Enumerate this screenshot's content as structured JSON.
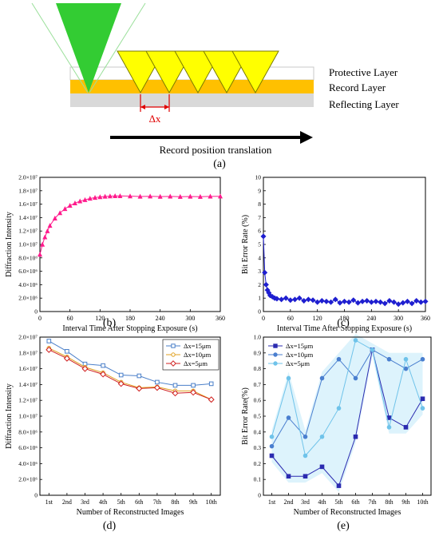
{
  "panel_a": {
    "layers": [
      "Protective Layer",
      "Record Layer",
      "Reflecting Layer"
    ],
    "delta_label": "Δx",
    "arrow_label": "Record position translation",
    "panel_label": "(a)",
    "colors": {
      "beam": "#33cc33",
      "spots": "#ffff00",
      "record": "#ffc000",
      "reflect": "#d9d9d9",
      "marker": "#e00000"
    }
  },
  "chart_data": [
    {
      "id": "b",
      "type": "line",
      "panel_label": "(b)",
      "xlabel": "Interval Time After Stopping Exposure (s)",
      "ylabel": "Diffraction Intensity",
      "xlim": [
        0,
        360
      ],
      "xticks": [
        0,
        60,
        120,
        180,
        240,
        300,
        360
      ],
      "ylim": [
        0,
        20000000
      ],
      "yticks": [
        0,
        2000000,
        4000000,
        6000000,
        8000000,
        10000000,
        12000000,
        14000000,
        16000000,
        18000000,
        20000000
      ],
      "ytick_labels": [
        "0",
        "2.0×10⁶",
        "4.0×10⁶",
        "6.0×10⁶",
        "8.0×10⁶",
        "1.0×10⁷",
        "1.2×10⁷",
        "1.4×10⁷",
        "1.6×10⁷",
        "1.8×10⁷",
        "2.0×10⁷"
      ],
      "color": "#ff1a8c",
      "x": [
        0,
        5,
        10,
        15,
        20,
        30,
        40,
        50,
        60,
        70,
        80,
        90,
        100,
        110,
        120,
        130,
        140,
        150,
        160,
        180,
        200,
        220,
        240,
        260,
        280,
        300,
        320,
        340,
        360
      ],
      "y": [
        8500000,
        10000000,
        11100000,
        12000000,
        12800000,
        13900000,
        14700000,
        15300000,
        15800000,
        16150000,
        16450000,
        16650000,
        16850000,
        16980000,
        17080000,
        17150000,
        17200000,
        17220000,
        17230000,
        17200000,
        17150000,
        17180000,
        17130000,
        17160000,
        17120000,
        17150000,
        17120000,
        17160000,
        17180000
      ]
    },
    {
      "id": "c",
      "type": "line",
      "panel_label": "(c)",
      "xlabel": "Interval Time After Stopping Exposure (s)",
      "ylabel": "Bit Error Rate (%)",
      "xlim": [
        0,
        360
      ],
      "xticks": [
        0,
        60,
        120,
        180,
        240,
        300,
        360
      ],
      "ylim": [
        0,
        10
      ],
      "yticks": [
        0,
        1,
        2,
        3,
        4,
        5,
        6,
        7,
        8,
        9,
        10
      ],
      "ytick_labels": [
        "0",
        "1",
        "2",
        "3",
        "4",
        "5",
        "6",
        "7",
        "8",
        "9",
        "10"
      ],
      "color": "#1f1fd0",
      "x": [
        0,
        3,
        6,
        9,
        12,
        15,
        20,
        25,
        30,
        40,
        50,
        60,
        70,
        80,
        90,
        100,
        110,
        120,
        130,
        140,
        150,
        160,
        170,
        180,
        190,
        200,
        210,
        220,
        230,
        240,
        250,
        260,
        270,
        280,
        290,
        300,
        310,
        320,
        330,
        340,
        350,
        360
      ],
      "y": [
        5.6,
        2.9,
        2.0,
        1.6,
        1.4,
        1.2,
        1.1,
        1.0,
        0.95,
        0.9,
        1.0,
        0.85,
        0.9,
        1.0,
        0.8,
        0.9,
        0.85,
        0.7,
        0.8,
        0.75,
        0.7,
        0.9,
        0.65,
        0.75,
        0.7,
        0.85,
        0.65,
        0.75,
        0.8,
        0.7,
        0.75,
        0.7,
        0.6,
        0.8,
        0.7,
        0.55,
        0.65,
        0.75,
        0.6,
        0.8,
        0.7,
        0.75
      ]
    },
    {
      "id": "d",
      "type": "line",
      "panel_label": "(d)",
      "xlabel": "Number of Reconstructed Images",
      "ylabel": "Diffraction Intensity",
      "categories": [
        "1st",
        "2nd",
        "3rd",
        "4th",
        "5th",
        "6th",
        "7th",
        "8th",
        "9th",
        "10th"
      ],
      "ylim": [
        0,
        20000000
      ],
      "yticks": [
        0,
        2000000,
        4000000,
        6000000,
        8000000,
        10000000,
        12000000,
        14000000,
        16000000,
        18000000,
        20000000
      ],
      "ytick_labels": [
        "0",
        "2.0×10⁶",
        "4.0×10⁶",
        "6.0×10⁶",
        "8.0×10⁶",
        "1.0×10⁷",
        "1.2×10⁷",
        "1.4×10⁷",
        "1.6×10⁷",
        "1.8×10⁷",
        "2.0×10⁷"
      ],
      "legend_position": "top-right",
      "series": [
        {
          "name": "Δx=15μm",
          "color": "#4a7fc9",
          "marker": "square",
          "values": [
            19500000,
            18200000,
            16600000,
            16400000,
            15200000,
            15100000,
            14300000,
            13900000,
            13900000,
            14100000
          ]
        },
        {
          "name": "Δx=10μm",
          "color": "#e0a020",
          "marker": "circle",
          "values": [
            18600000,
            17500000,
            16200000,
            15500000,
            14300000,
            13600000,
            13700000,
            13200000,
            13200000,
            12100000
          ]
        },
        {
          "name": "Δx=5μm",
          "color": "#d02020",
          "marker": "diamond",
          "values": [
            18400000,
            17300000,
            16000000,
            15300000,
            14100000,
            13500000,
            13600000,
            12900000,
            13000000,
            12100000
          ]
        }
      ]
    },
    {
      "id": "e",
      "type": "line",
      "panel_label": "(e)",
      "xlabel": "Number of Reconstructed Images",
      "ylabel": "Bit Error Rate(%)",
      "categories": [
        "1st",
        "2nd",
        "3rd",
        "4th",
        "5th",
        "6th",
        "7th",
        "8th",
        "9th",
        "10th"
      ],
      "ylim": [
        0,
        1
      ],
      "yticks": [
        0,
        0.1,
        0.2,
        0.3,
        0.4,
        0.5,
        0.6,
        0.7,
        0.8,
        0.9,
        1.0
      ],
      "ytick_labels": [
        "0",
        "0.1",
        "0.2",
        "0.3",
        "0.4",
        "0.5",
        "0.6",
        "0.7",
        "0.8",
        "0.9",
        "1.0"
      ],
      "legend_position": "top-left",
      "series": [
        {
          "name": "Δx=15μm",
          "color": "#2b2bb0",
          "marker": "square",
          "values": [
            0.25,
            0.12,
            0.12,
            0.18,
            0.06,
            0.37,
            0.92,
            0.49,
            0.43,
            0.61
          ]
        },
        {
          "name": "Δx=10μm",
          "color": "#4a7fcf",
          "marker": "circle",
          "values": [
            0.31,
            0.49,
            0.37,
            0.74,
            0.86,
            0.74,
            0.92,
            0.86,
            0.8,
            0.86
          ]
        },
        {
          "name": "Δx=5μm",
          "color": "#6fc3ea",
          "marker": "circle",
          "values": [
            0.37,
            0.74,
            0.25,
            0.37,
            0.55,
            0.98,
            0.92,
            0.43,
            0.86,
            0.55
          ]
        }
      ]
    }
  ]
}
